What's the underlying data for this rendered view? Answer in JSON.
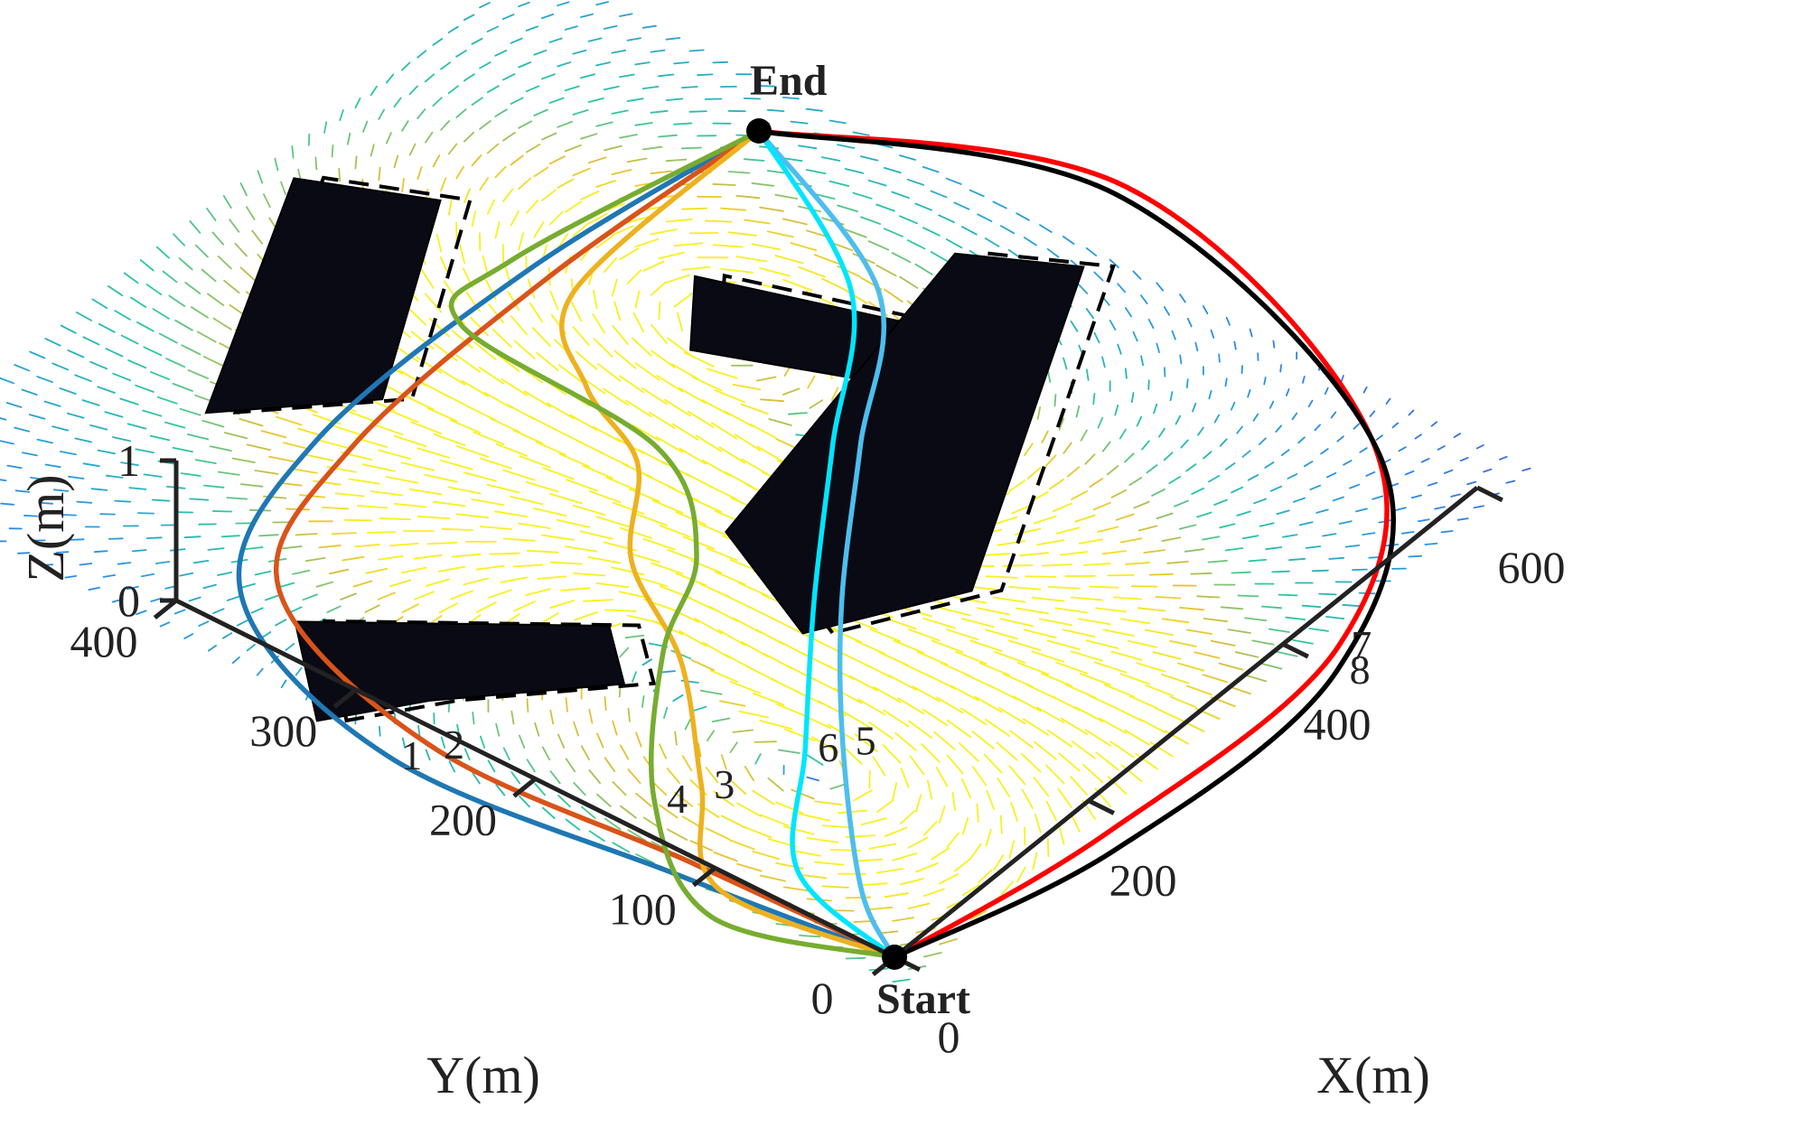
{
  "chart_data": {
    "type": "3d-path-plot",
    "title": "",
    "axes": {
      "x": {
        "label": "X(m)",
        "range": [
          0,
          600
        ],
        "ticks": [
          0,
          200,
          400,
          600
        ]
      },
      "y": {
        "label": "Y(m)",
        "range": [
          0,
          400
        ],
        "ticks": [
          0,
          100,
          200,
          300,
          400
        ]
      },
      "z": {
        "label": "Z(m)",
        "range": [
          0,
          1
        ],
        "ticks": [
          0,
          1
        ]
      }
    },
    "points": [
      {
        "label": "Start",
        "x": 0,
        "y": 0
      },
      {
        "label": "End",
        "x": 600,
        "y": 400
      }
    ],
    "paths": [
      {
        "label": "1",
        "color": "#1f77b4",
        "xy": [
          [
            0,
            0
          ],
          [
            -20,
            110
          ],
          [
            -40,
            260
          ],
          [
            30,
            380
          ],
          [
            180,
            420
          ],
          [
            400,
            420
          ],
          [
            600,
            400
          ]
        ]
      },
      {
        "label": "2",
        "color": "#d95319",
        "xy": [
          [
            0,
            0
          ],
          [
            -5,
            110
          ],
          [
            -15,
            250
          ],
          [
            50,
            370
          ],
          [
            190,
            405
          ],
          [
            400,
            410
          ],
          [
            600,
            400
          ]
        ]
      },
      {
        "label": "3",
        "color": "#edb120",
        "xy": [
          [
            0,
            0
          ],
          [
            -15,
            90
          ],
          [
            60,
            140
          ],
          [
            150,
            200
          ],
          [
            210,
            260
          ],
          [
            290,
            300
          ],
          [
            330,
            350
          ],
          [
            400,
            395
          ],
          [
            600,
            400
          ]
        ]
      },
      {
        "label": "4",
        "color": "#77ac30",
        "xy": [
          [
            0,
            0
          ],
          [
            -40,
            80
          ],
          [
            30,
            150
          ],
          [
            150,
            210
          ],
          [
            240,
            240
          ],
          [
            310,
            300
          ],
          [
            330,
            420
          ],
          [
            400,
            430
          ],
          [
            600,
            400
          ]
        ]
      },
      {
        "label": "5",
        "color": "#4dbeee",
        "xy": [
          [
            0,
            0
          ],
          [
            40,
            40
          ],
          [
            150,
            110
          ],
          [
            260,
            170
          ],
          [
            390,
            230
          ],
          [
            520,
            290
          ],
          [
            600,
            400
          ]
        ]
      },
      {
        "label": "6",
        "color": "#00e5ff",
        "xy": [
          [
            0,
            0
          ],
          [
            30,
            70
          ],
          [
            130,
            120
          ],
          [
            250,
            180
          ],
          [
            380,
            240
          ],
          [
            510,
            300
          ],
          [
            600,
            400
          ]
        ]
      },
      {
        "label": "7",
        "color": "#ff0000",
        "xy": [
          [
            0,
            0
          ],
          [
            180,
            -20
          ],
          [
            420,
            -20
          ],
          [
            600,
            60
          ],
          [
            700,
            250
          ],
          [
            600,
            400
          ]
        ]
      },
      {
        "label": "8",
        "color": "#000000",
        "xy": [
          [
            0,
            0
          ],
          [
            170,
            -30
          ],
          [
            400,
            -30
          ],
          [
            590,
            50
          ],
          [
            690,
            250
          ],
          [
            600,
            400
          ]
        ]
      }
    ],
    "obstacles": [
      {
        "xy": [
          [
            160,
            470
          ],
          [
            380,
            540
          ],
          [
            420,
            480
          ],
          [
            240,
            415
          ]
        ]
      },
      {
        "xy": [
          [
            -40,
            300
          ],
          [
            30,
            350
          ],
          [
            150,
            240
          ],
          [
            110,
            210
          ],
          [
            20,
            270
          ]
        ]
      },
      {
        "xy": [
          [
            400,
            330
          ],
          [
            460,
            360
          ],
          [
            520,
            240
          ],
          [
            470,
            215
          ]
        ]
      },
      {
        "xy": [
          [
            220,
            170
          ],
          [
            270,
            240
          ],
          [
            580,
            280
          ],
          [
            620,
            230
          ],
          [
            320,
            130
          ]
        ]
      }
    ],
    "legend": "none",
    "grid": false
  }
}
